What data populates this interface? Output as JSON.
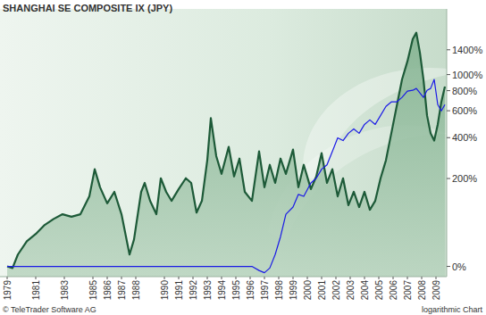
{
  "chart_data": {
    "type": "line",
    "title": "SHANGHAI SE COMPOSITE IX (JPY)",
    "annotations": [
      "© TeleTrader Software AG",
      "logarithmic Chart"
    ],
    "log": "y",
    "grid": false,
    "x": [
      1979.0,
      1979.375,
      1979.75,
      1980.375,
      1981.0,
      1981.625,
      1982.25,
      1982.875,
      1983.5,
      1984.125,
      1984.75,
      1985.125,
      1985.5,
      1986.0,
      1986.5,
      1987.0,
      1987.5625,
      1987.875,
      1988.375,
      1988.625,
      1989.0,
      1989.4375,
      1989.75,
      1990.125,
      1990.5,
      1991.0,
      1991.5,
      1991.875,
      1992.25,
      1992.625,
      1993.0,
      1993.25,
      1993.625,
      1994.0,
      1994.5,
      1994.875,
      1995.25,
      1995.625,
      1996.125,
      1996.625,
      1997.0,
      1997.375,
      1997.75,
      1998.125,
      1998.5,
      1999.0,
      1999.375,
      1999.75,
      2000.25,
      2000.625,
      2001.0,
      2001.375,
      2001.75,
      2002.125,
      2002.5,
      2002.875,
      2003.25,
      2003.625,
      2004.0,
      2004.375,
      2004.75,
      2005.125,
      2005.5,
      2005.875,
      2006.25,
      2006.625,
      2007.0,
      2007.375,
      2007.625,
      2007.875,
      2008.125,
      2008.375,
      2008.625,
      2008.875,
      2009.125,
      2009.375,
      2009.625
    ],
    "series": [
      {
        "type": "area",
        "color": "#1d5a38",
        "values": [
          0,
          -2,
          16,
          37,
          50,
          68,
          81,
          92,
          86,
          92,
          140,
          237,
          169,
          120,
          154,
          92,
          16,
          40,
          154,
          184,
          127,
          92,
          201,
          154,
          127,
          163,
          201,
          184,
          96,
          127,
          277,
          539,
          298,
          218,
          346,
          208,
          285,
          154,
          127,
          321,
          169,
          256,
          184,
          285,
          218,
          331,
          169,
          256,
          163,
          208,
          312,
          184,
          237,
          140,
          201,
          115,
          154,
          110,
          154,
          103,
          127,
          201,
          277,
          428,
          639,
          935,
          1196,
          1616,
          1757,
          1350,
          935,
          560,
          428,
          382,
          490,
          682,
          846
        ]
      },
      {
        "type": "line",
        "color": "#1a1ae6",
        "values": [
          0,
          0,
          0,
          0,
          0,
          0,
          0,
          0,
          0,
          0,
          0,
          0,
          0,
          0,
          0,
          0,
          0,
          0,
          0,
          0,
          0,
          0,
          0,
          0,
          0,
          0,
          0,
          0,
          0,
          0,
          0,
          0,
          0,
          0,
          0,
          0,
          0,
          0,
          0,
          -5,
          -7.6,
          -2,
          16,
          45,
          92,
          110,
          146,
          140,
          184,
          201,
          237,
          256,
          321,
          399,
          382,
          428,
          458,
          428,
          490,
          524,
          490,
          560,
          639,
          682,
          682,
          727,
          794,
          804,
          825,
          775,
          727,
          804,
          825,
          935,
          656,
          599,
          656
        ]
      }
    ],
    "xlim": [
      1978.5,
      2009.75
    ],
    "xticks": [
      1979,
      1981,
      1983,
      1985,
      1986,
      1987,
      1988,
      1990,
      1991,
      1992,
      1993,
      1994,
      1995,
      1996,
      1997,
      1998,
      1999,
      2000,
      2001,
      2002,
      2003,
      2004,
      2005,
      2006,
      2007,
      2008,
      2009
    ],
    "ylim": [
      -12,
      2400
    ],
    "yticks": [
      {
        "value": 0,
        "label": "0%"
      },
      {
        "value": 200,
        "label": "200%"
      },
      {
        "value": 400,
        "label": "400%"
      },
      {
        "value": 600,
        "label": "600%"
      },
      {
        "value": 800,
        "label": "800%"
      },
      {
        "value": 1000,
        "label": "1000%"
      },
      {
        "value": 1400,
        "label": "1400%"
      }
    ]
  }
}
